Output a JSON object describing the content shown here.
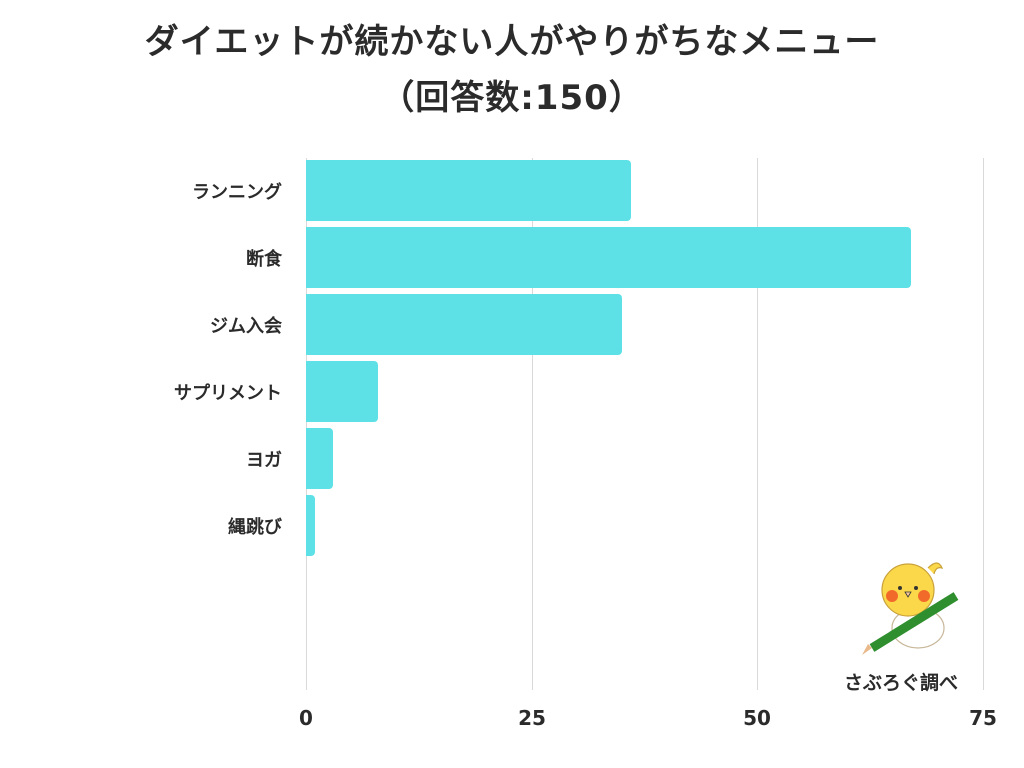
{
  "title": {
    "line1": "ダイエットが続かない人がやりがちなメニュー",
    "line2": "（回答数:150）"
  },
  "bar_color": "#5ee1e6",
  "grid_color": "#d9d9d9",
  "credit": "さぶろぐ調べ",
  "chart_data": {
    "type": "bar",
    "orientation": "horizontal",
    "title": "ダイエットが続かない人がやりがちなメニュー（回答数:150）",
    "categories": [
      "ランニング",
      "断食",
      "ジム入会",
      "サプリメント",
      "ヨガ",
      "縄跳び"
    ],
    "values": [
      36,
      67,
      35,
      8,
      3,
      1
    ],
    "xlabel": "",
    "ylabel": "",
    "xlim": [
      0,
      75
    ],
    "xticks": [
      "0",
      "25",
      "50",
      "75"
    ],
    "grid": true,
    "legend": null
  }
}
